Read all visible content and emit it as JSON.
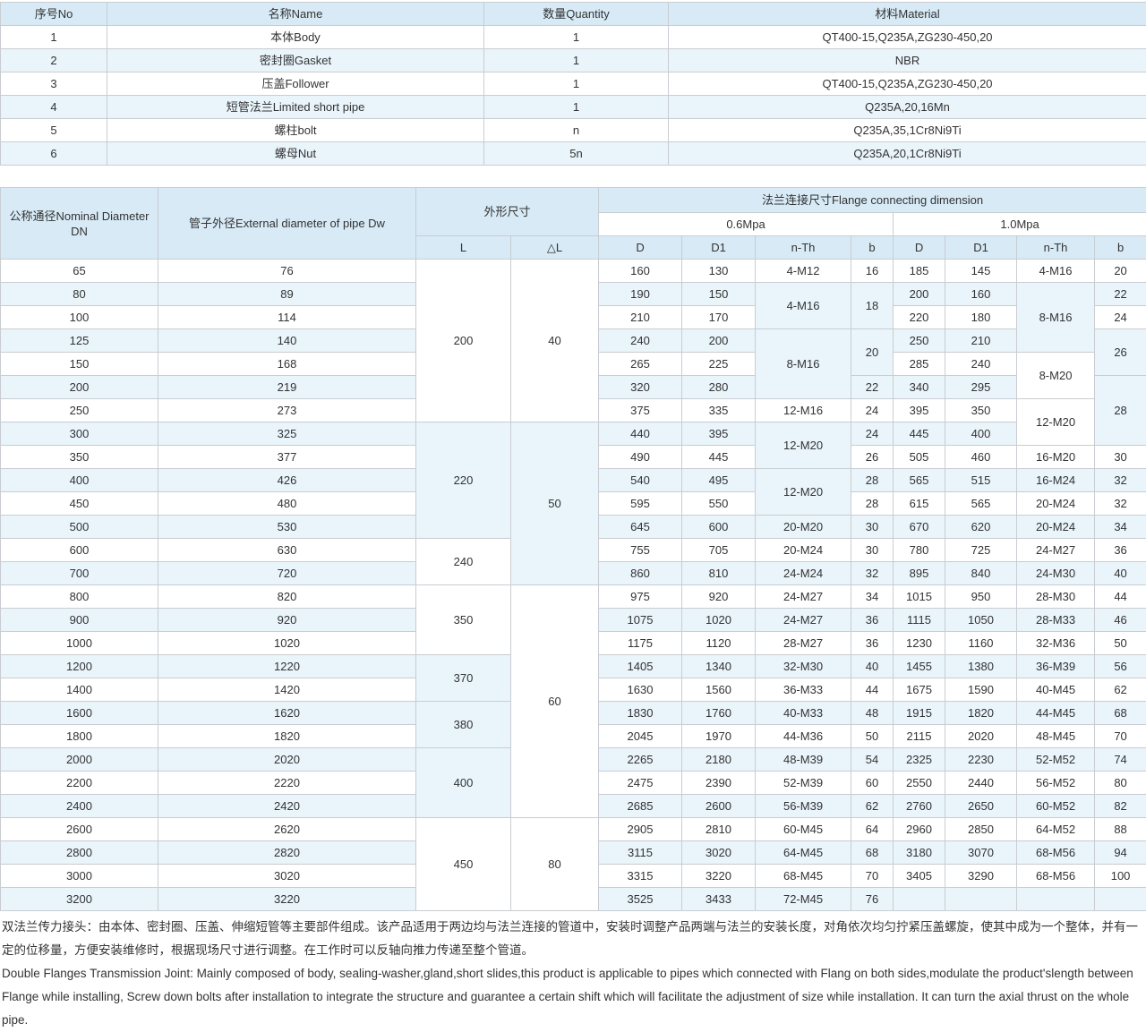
{
  "colors": {
    "header_bg": "#d7eaf6",
    "stripe_bg": "#e9f4fb",
    "border": "#c9cdd1",
    "text": "#333333"
  },
  "parts_table": {
    "headers": [
      "序号No",
      "名称Name",
      "数量Quantity",
      "材料Material"
    ],
    "rows": [
      [
        "1",
        "本体Body",
        "1",
        "QT400-15,Q235A,ZG230-450,20"
      ],
      [
        "2",
        "密封圈Gasket",
        "1",
        "NBR"
      ],
      [
        "3",
        "压盖Follower",
        "1",
        "QT400-15,Q235A,ZG230-450,20"
      ],
      [
        "4",
        "短管法兰Limited short pipe",
        "1",
        "Q235A,20,16Mn"
      ],
      [
        "5",
        "螺柱bolt",
        "n",
        "Q235A,35,1Cr8Ni9Ti"
      ],
      [
        "6",
        "螺母Nut",
        "5n",
        "Q235A,20,1Cr8Ni9Ti"
      ]
    ]
  },
  "dimension_table": {
    "header": {
      "dn": "公称通径Nominal Diameter DN",
      "dw": "管子外径External diameter of pipe Dw",
      "overall": "外形尺寸",
      "flange": "法兰连接尺寸Flange connecting dimension",
      "p06": "0.6Mpa",
      "p10": "1.0Mpa",
      "sub": [
        "L",
        "△L",
        "D",
        "D1",
        "n-Th",
        "b",
        "D",
        "D1",
        "n-Th",
        "b"
      ]
    },
    "rows": [
      [
        "65",
        "76",
        [
          "200",
          7
        ],
        [
          "40",
          7
        ],
        "160",
        "130",
        "4-M12",
        "16",
        "185",
        "145",
        "4-M16",
        "20"
      ],
      [
        "80",
        "89",
        "190",
        "150",
        [
          "4-M16",
          2
        ],
        [
          "18",
          2
        ],
        "200",
        "160",
        [
          "8-M16",
          3
        ],
        "22"
      ],
      [
        "100",
        "114",
        "210",
        "170",
        "220",
        "180",
        "24"
      ],
      [
        "125",
        "140",
        "240",
        "200",
        [
          "8-M16",
          3
        ],
        [
          "20",
          2
        ],
        "250",
        "210",
        [
          "26",
          2
        ]
      ],
      [
        "150",
        "168",
        "265",
        "225",
        "285",
        "240",
        [
          "8-M20",
          2
        ]
      ],
      [
        "200",
        "219",
        "320",
        "280",
        "22",
        "340",
        "295",
        [
          "28",
          3
        ]
      ],
      [
        "250",
        "273",
        "375",
        "335",
        "12-M16",
        "24",
        "395",
        "350",
        [
          "12-M20",
          2
        ]
      ],
      [
        "300",
        "325",
        [
          "220",
          5
        ],
        [
          "50",
          7
        ],
        "440",
        "395",
        [
          "12-M20",
          2
        ],
        "24",
        "445",
        "400"
      ],
      [
        "350",
        "377",
        "490",
        "445",
        "26",
        "505",
        "460",
        "16-M20",
        "30"
      ],
      [
        "400",
        "426",
        "540",
        "495",
        [
          "12-M20",
          2
        ],
        "28",
        "565",
        "515",
        "16-M24",
        "32"
      ],
      [
        "450",
        "480",
        "595",
        "550",
        "28",
        "615",
        "565",
        "20-M24",
        "32"
      ],
      [
        "500",
        "530",
        "645",
        "600",
        "20-M20",
        "30",
        "670",
        "620",
        "20-M24",
        "34"
      ],
      [
        "600",
        "630",
        [
          "240",
          2
        ],
        "755",
        "705",
        "20-M24",
        "30",
        "780",
        "725",
        "24-M27",
        "36"
      ],
      [
        "700",
        "720",
        "860",
        "810",
        "24-M24",
        "32",
        "895",
        "840",
        "24-M30",
        "40"
      ],
      [
        "800",
        "820",
        [
          "350",
          3
        ],
        [
          "60",
          10
        ],
        "975",
        "920",
        "24-M27",
        "34",
        "1015",
        "950",
        "28-M30",
        "44"
      ],
      [
        "900",
        "920",
        "1075",
        "1020",
        "24-M27",
        "36",
        "1115",
        "1050",
        "28-M33",
        "46"
      ],
      [
        "1000",
        "1020",
        "1175",
        "1120",
        "28-M27",
        "36",
        "1230",
        "1160",
        "32-M36",
        "50"
      ],
      [
        "1200",
        "1220",
        [
          "370",
          2
        ],
        "1405",
        "1340",
        "32-M30",
        "40",
        "1455",
        "1380",
        "36-M39",
        "56"
      ],
      [
        "1400",
        "1420",
        "1630",
        "1560",
        "36-M33",
        "44",
        "1675",
        "1590",
        "40-M45",
        "62"
      ],
      [
        "1600",
        "1620",
        [
          "380",
          2
        ],
        "1830",
        "1760",
        "40-M33",
        "48",
        "1915",
        "1820",
        "44-M45",
        "68"
      ],
      [
        "1800",
        "1820",
        "2045",
        "1970",
        "44-M36",
        "50",
        "2115",
        "2020",
        "48-M45",
        "70"
      ],
      [
        "2000",
        "2020",
        [
          "400",
          3
        ],
        "2265",
        "2180",
        "48-M39",
        "54",
        "2325",
        "2230",
        "52-M52",
        "74"
      ],
      [
        "2200",
        "2220",
        "2475",
        "2390",
        "52-M39",
        "60",
        "2550",
        "2440",
        "56-M52",
        "80"
      ],
      [
        "2400",
        "2420",
        "2685",
        "2600",
        "56-M39",
        "62",
        "2760",
        "2650",
        "60-M52",
        "82"
      ],
      [
        "2600",
        "2620",
        [
          "450",
          4
        ],
        [
          "80",
          4
        ],
        "2905",
        "2810",
        "60-M45",
        "64",
        "2960",
        "2850",
        "64-M52",
        "88"
      ],
      [
        "2800",
        "2820",
        "3115",
        "3020",
        "64-M45",
        "68",
        "3180",
        "3070",
        "68-M56",
        "94"
      ],
      [
        "3000",
        "3020",
        "3315",
        "3220",
        "68-M45",
        "70",
        "3405",
        "3290",
        "68-M56",
        "100"
      ],
      [
        "3200",
        "3220",
        "3525",
        "3433",
        "72-M45",
        "76",
        "",
        "",
        "",
        ""
      ]
    ]
  },
  "description": {
    "cn": "双法兰传力接头：由本体、密封圈、压盖、伸缩短管等主要部件组成。该产品适用于两边均与法兰连接的管道中，安装时调整产品两端与法兰的安装长度，对角依次均匀拧紧压盖螺旋，使其中成为一个整体，并有一定的位移量，方便安装维修时，根据现场尺寸进行调整。在工作时可以反轴向推力传递至整个管道。",
    "en": "Double Flanges Transmission Joint: Mainly composed of body, sealing-washer,gland,short slides,this product is applicable to pipes which connected with Flang on both sides,modulate the product'slength between Flange while installing, Screw down bolts after installation to integrate the structure and guarantee a certain shift which will facilitate the adjustment of size while installation. It can turn the axial thrust on the whole pipe."
  }
}
